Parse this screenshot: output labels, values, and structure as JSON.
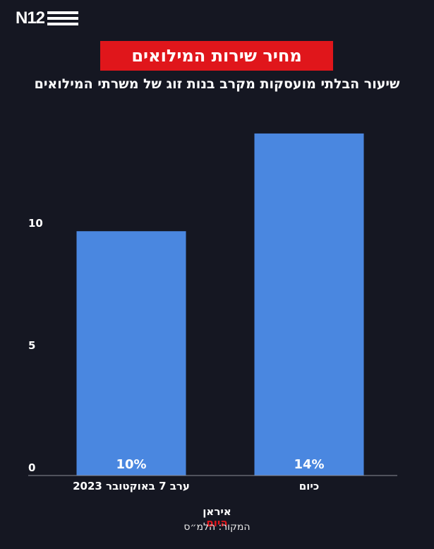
{
  "brand": {
    "logo": "N12"
  },
  "header": {
    "title": "מחיר שירות המילואים",
    "subtitle": "שיעור הבלתי מועסקות מקרב בנות זוג של משרתי המילואים"
  },
  "footer": {
    "brand_line1": "איראן",
    "brand_line2": "היום",
    "source": "המקור: הלמ״ס"
  },
  "colors": {
    "bar": "#4a87e0",
    "background": "#151722",
    "accent": "#e0161b"
  },
  "chart_data": {
    "type": "bar",
    "categories": [
      "ערב 7 באוקטובר 2023",
      "כיום"
    ],
    "values": [
      10,
      14
    ],
    "data_labels": [
      "10%",
      "14%"
    ],
    "yticks": [
      0,
      5,
      10
    ],
    "ylim": [
      0,
      14.2
    ],
    "grid": false,
    "title": "מחיר שירות המילואים",
    "subtitle": "שיעור הבלתי מועסקות מקרב בנות זוג של משרתי המילואים"
  }
}
